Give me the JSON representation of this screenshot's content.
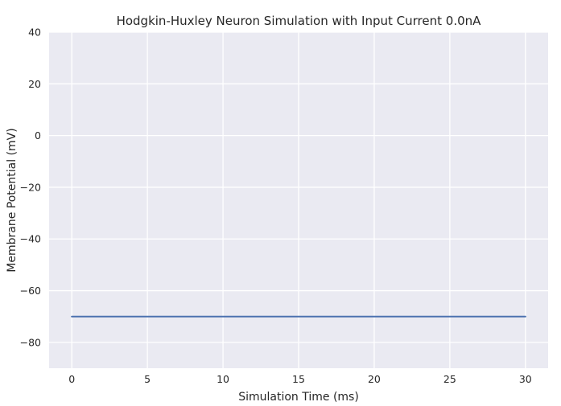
{
  "chart_data": {
    "type": "line",
    "title": "Hodgkin-Huxley Neuron Simulation with Input Current 0.0nA",
    "xlabel": "Simulation Time (ms)",
    "ylabel": "Membrane Potential (mV)",
    "xlim": [
      -1.5,
      31.5
    ],
    "ylim": [
      -90,
      40
    ],
    "xticks": [
      0,
      5,
      10,
      15,
      20,
      25,
      30
    ],
    "yticks": [
      40,
      20,
      0,
      -20,
      -40,
      -60,
      -80
    ],
    "grid": true,
    "background_color": "#eaeaf2",
    "series": [
      {
        "color": "#4c72b0",
        "x": [
          0,
          30
        ],
        "y": [
          -70,
          -70
        ]
      }
    ]
  }
}
